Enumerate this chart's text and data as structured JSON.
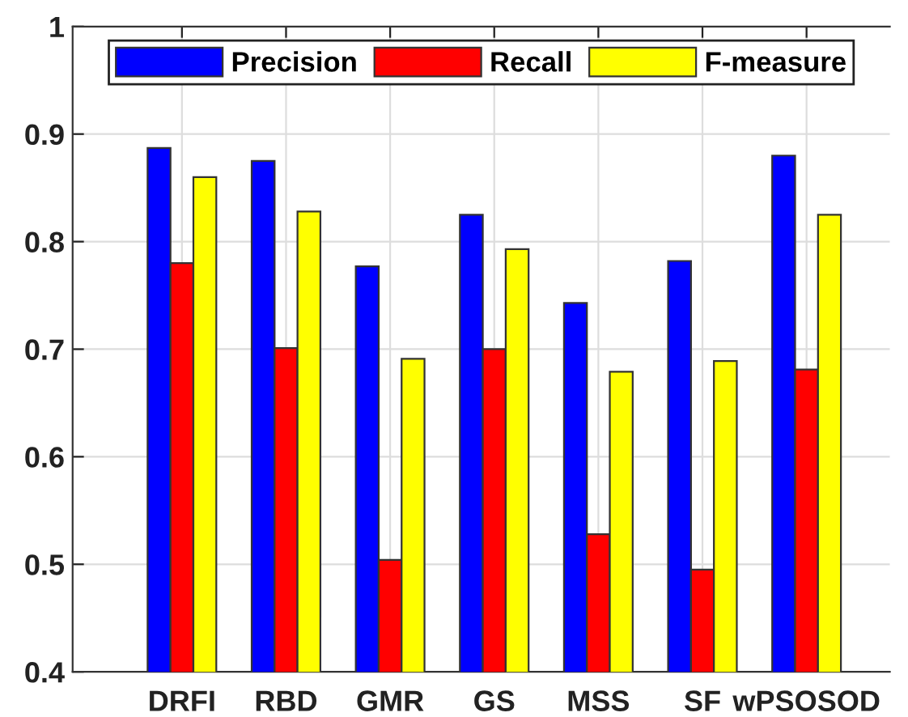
{
  "chart_data": {
    "type": "bar",
    "categories": [
      "DRFI",
      "RBD",
      "GMR",
      "GS",
      "MSS",
      "SF",
      "wPSOSOD"
    ],
    "series": [
      {
        "name": "Precision",
        "color": "#0000ff",
        "values": [
          0.887,
          0.875,
          0.777,
          0.825,
          0.743,
          0.782,
          0.88
        ]
      },
      {
        "name": "Recall",
        "color": "#ff0000",
        "values": [
          0.78,
          0.701,
          0.504,
          0.7,
          0.528,
          0.495,
          0.681
        ]
      },
      {
        "name": "F-measure",
        "color": "#ffff00",
        "values": [
          0.86,
          0.828,
          0.691,
          0.793,
          0.679,
          0.689,
          0.825
        ]
      }
    ],
    "ylim": [
      0.4,
      1
    ],
    "yticks": [
      0.4,
      0.5,
      0.6,
      0.7,
      0.8,
      0.9,
      1
    ],
    "grid": true,
    "legend": "top"
  }
}
